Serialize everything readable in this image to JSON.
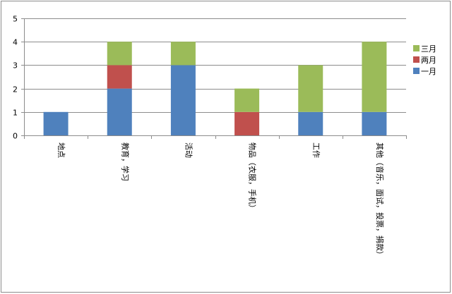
{
  "chart_data": {
    "type": "bar",
    "stacked": true,
    "categories": [
      "地点",
      "教育，学习",
      "活动",
      "物品（衣服，手机）",
      "工作",
      "其他（音乐，面试，投票，捐款）"
    ],
    "series": [
      {
        "name": "一月",
        "color": "#4f81bd",
        "values": [
          1,
          2,
          3,
          0,
          1,
          1
        ]
      },
      {
        "name": "两月",
        "color": "#c0504d",
        "values": [
          0,
          1,
          0,
          1,
          0,
          0
        ]
      },
      {
        "name": "三月",
        "color": "#9bbb59",
        "values": [
          0,
          1,
          1,
          1,
          2,
          3
        ]
      }
    ],
    "yticks": [
      0,
      1,
      2,
      3,
      4,
      5
    ],
    "ylim": [
      0,
      5
    ],
    "grid": true,
    "legend_position": "right",
    "legend_order": [
      "三月",
      "两月",
      "一月"
    ]
  }
}
